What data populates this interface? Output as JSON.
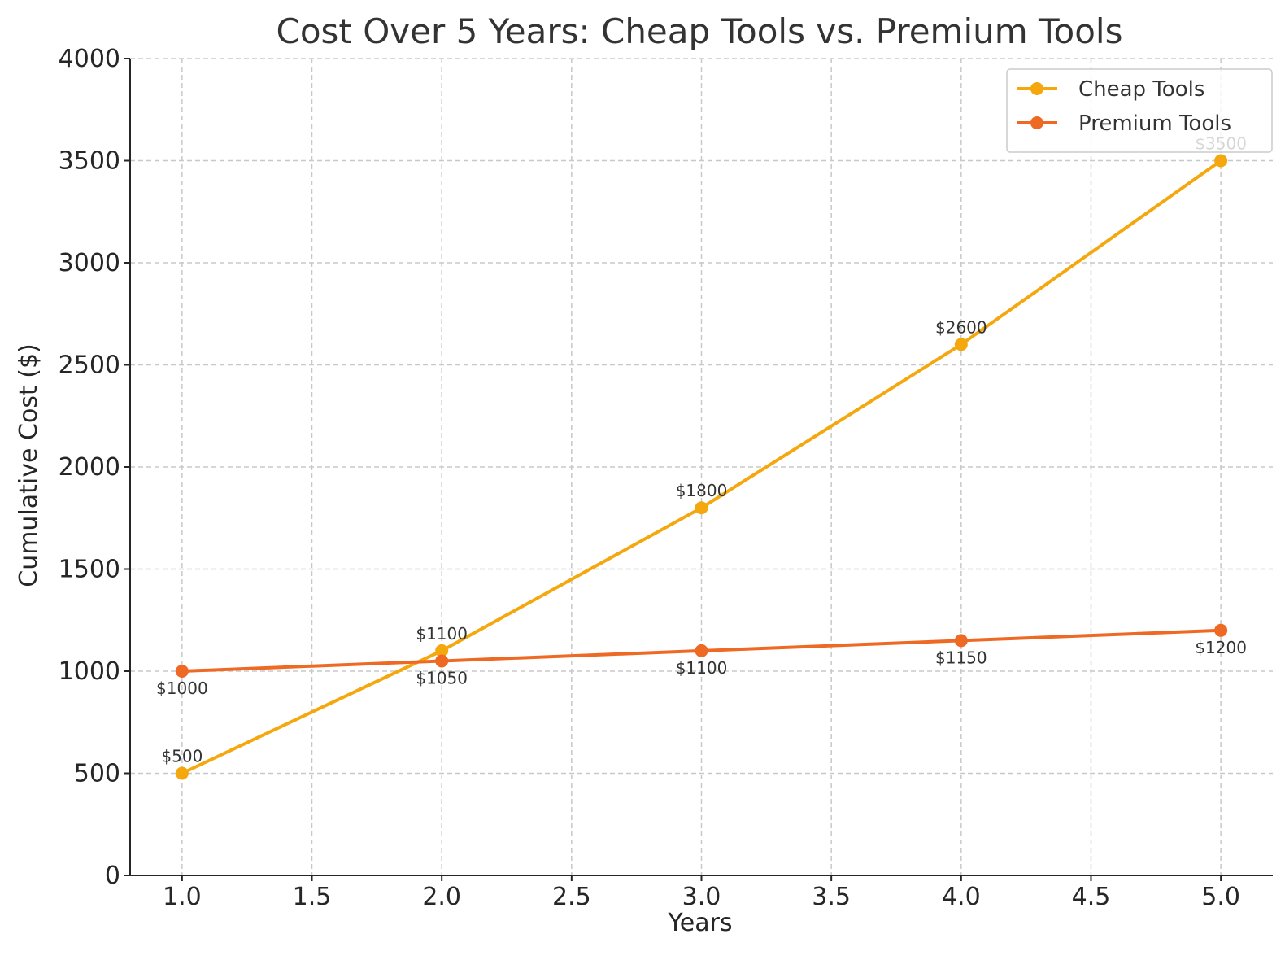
{
  "chart_data": {
    "type": "line",
    "title": "Cost Over 5 Years: Cheap Tools vs. Premium Tools",
    "xlabel": "Years",
    "ylabel": "Cumulative Cost ($)",
    "x": [
      1,
      2,
      3,
      4,
      5
    ],
    "xlim": [
      0.8,
      5.2
    ],
    "ylim": [
      0,
      4000
    ],
    "xticks": [
      1.0,
      1.5,
      2.0,
      2.5,
      3.0,
      3.5,
      4.0,
      4.5,
      5.0
    ],
    "xtick_labels": [
      "1.0",
      "1.5",
      "2.0",
      "2.5",
      "3.0",
      "3.5",
      "4.0",
      "4.5",
      "5.0"
    ],
    "yticks": [
      0,
      500,
      1000,
      1500,
      2000,
      2500,
      3000,
      3500,
      4000
    ],
    "ytick_labels": [
      "0",
      "500",
      "1000",
      "1500",
      "2000",
      "2500",
      "3000",
      "3500",
      "4000"
    ],
    "grid": true,
    "legend_position": "top-right",
    "series": [
      {
        "name": "Cheap Tools",
        "color": "#f5a70e",
        "values": [
          500,
          1100,
          1800,
          2600,
          3500
        ],
        "labels": [
          "$500",
          "$1100",
          "$1800",
          "$2600",
          "$3500"
        ],
        "label_placement": "above"
      },
      {
        "name": "Premium Tools",
        "color": "#ee6a24",
        "values": [
          1000,
          1050,
          1100,
          1150,
          1200
        ],
        "labels": [
          "$1000",
          "$1050",
          "$1100",
          "$1150",
          "$1200"
        ],
        "label_placement": "below"
      }
    ]
  }
}
